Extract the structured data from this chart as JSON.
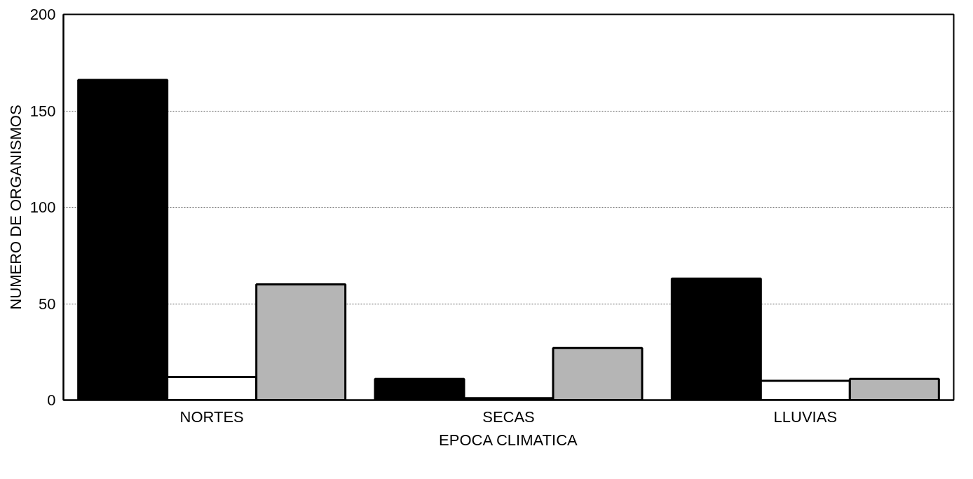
{
  "chart_data": {
    "type": "bar",
    "xlabel": "EPOCA CLIMATICA",
    "ylabel": "NUMERO DE ORGANISMOS",
    "categories": [
      "NORTES",
      "SECAS",
      "LLUVIAS"
    ],
    "series": [
      {
        "color": "#000000",
        "values": [
          166,
          11,
          63
        ]
      },
      {
        "color": "#ffffff",
        "values": [
          12,
          1,
          10
        ]
      },
      {
        "color": "#b5b5b5",
        "values": [
          60,
          27,
          11
        ]
      }
    ],
    "ylim": [
      0,
      200
    ],
    "yticks": [
      0,
      50,
      100,
      150,
      200
    ],
    "grid": "y"
  }
}
